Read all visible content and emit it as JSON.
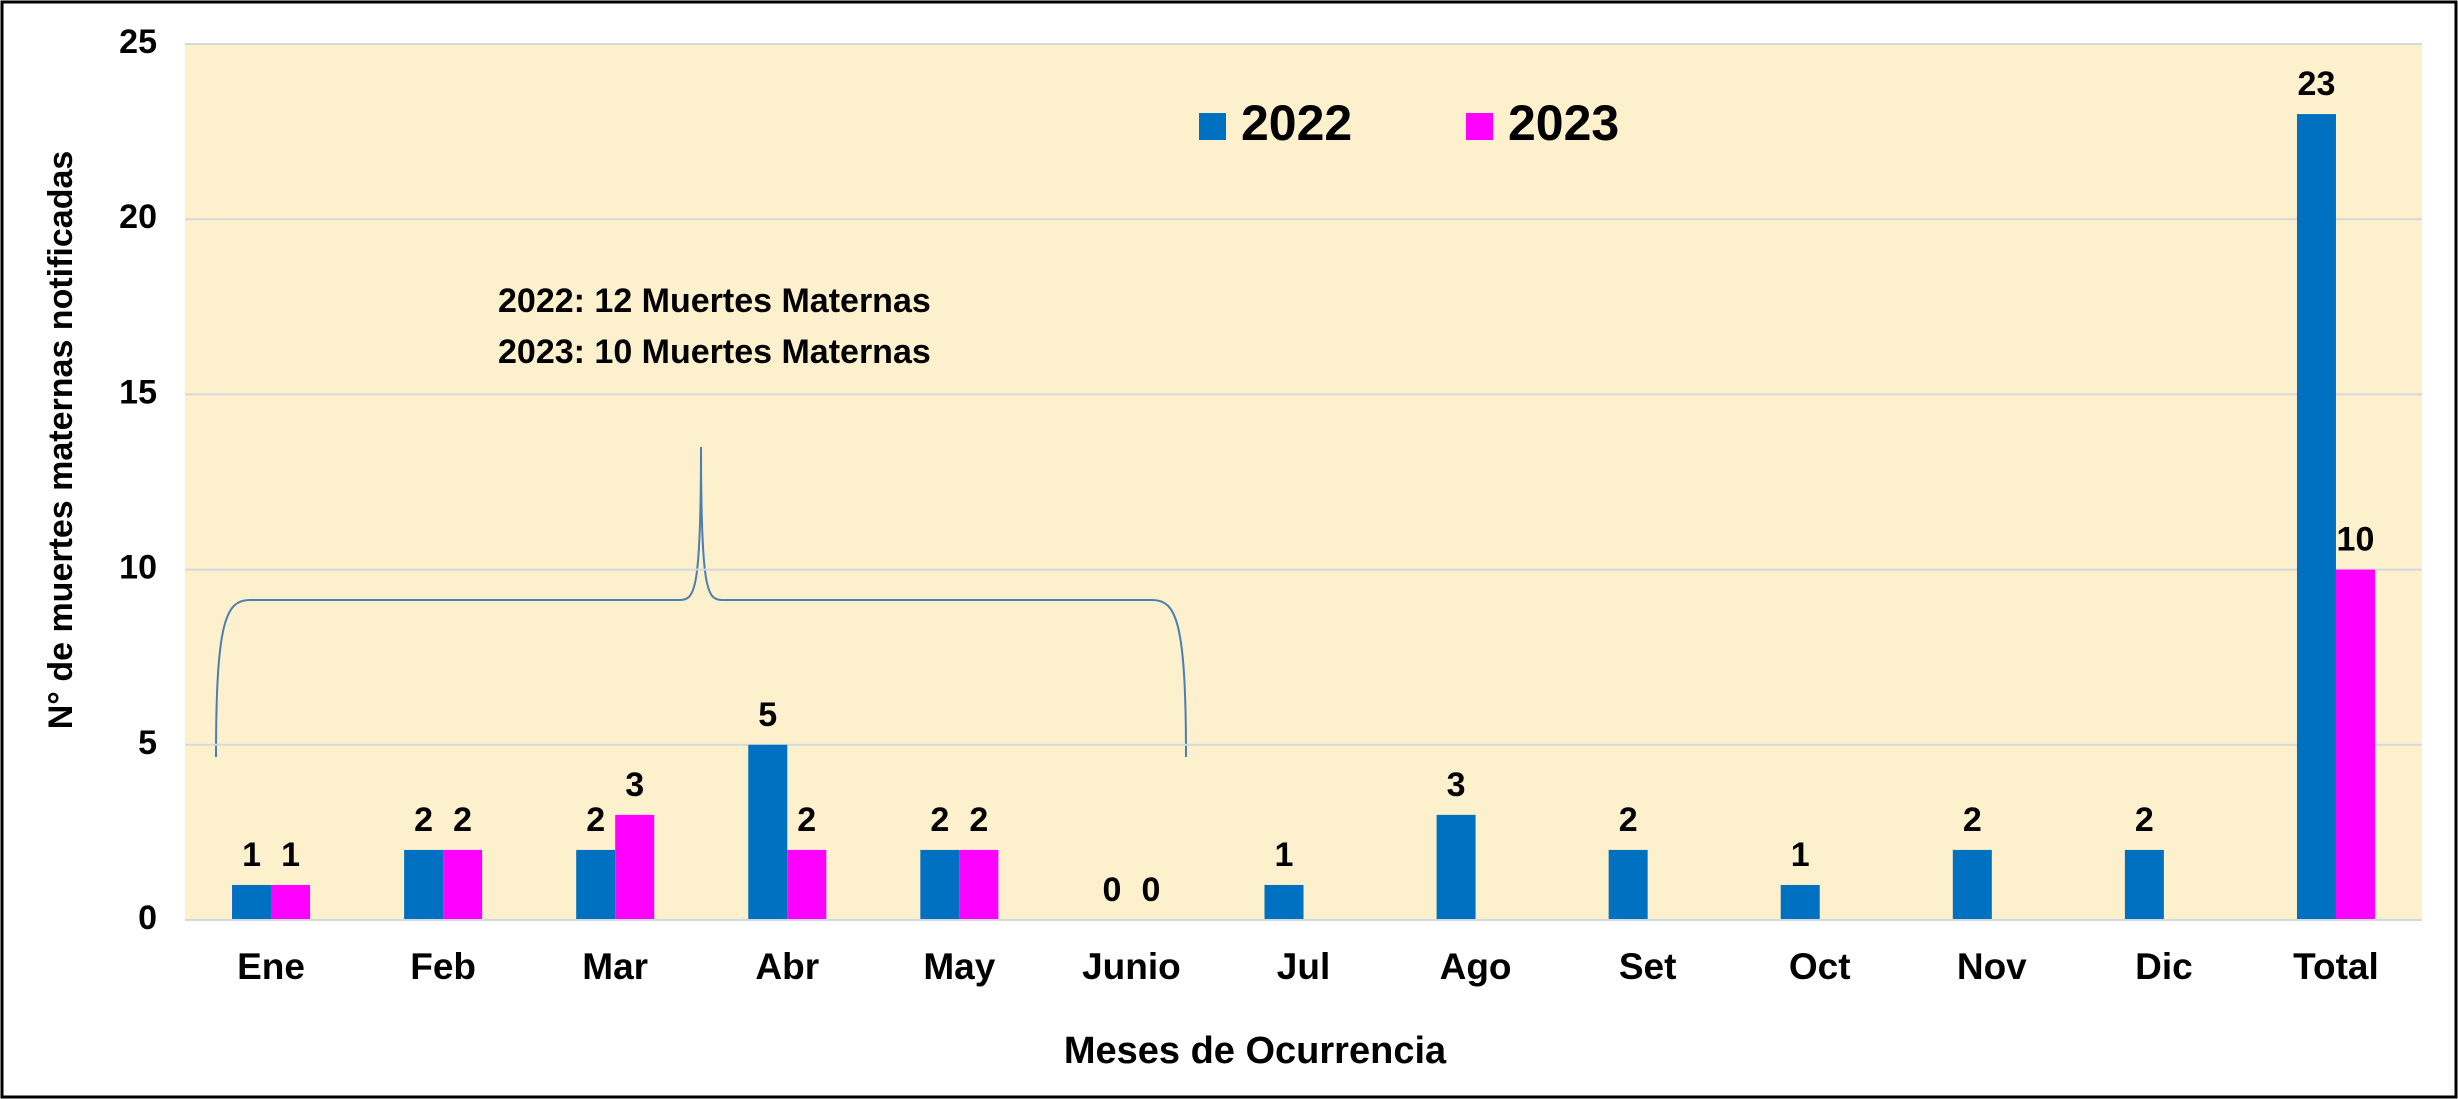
{
  "chart_data": {
    "type": "bar",
    "categories": [
      "Ene",
      "Feb",
      "Mar",
      "Abr",
      "May",
      "Junio",
      "Jul",
      "Ago",
      "Set",
      "Oct",
      "Nov",
      "Dic",
      "Total"
    ],
    "series": [
      {
        "name": "2022",
        "color": "#0070c0",
        "values": [
          1,
          2,
          2,
          5,
          2,
          0,
          1,
          3,
          2,
          1,
          2,
          2,
          23
        ]
      },
      {
        "name": "2023",
        "color": "#ff00ff",
        "values": [
          1,
          2,
          3,
          2,
          2,
          0,
          null,
          null,
          null,
          null,
          null,
          null,
          10
        ]
      }
    ],
    "ylim": [
      0,
      25
    ],
    "yticks": [
      0,
      5,
      10,
      15,
      20,
      25
    ],
    "grid": true,
    "y_label": "N° de muertes maternas notificadas",
    "x_label": "Meses de Ocurrencia",
    "annotations": [
      "2022: 12 Muertes Maternas",
      "2023: 10 Muertes Maternas"
    ],
    "legend": "top"
  }
}
